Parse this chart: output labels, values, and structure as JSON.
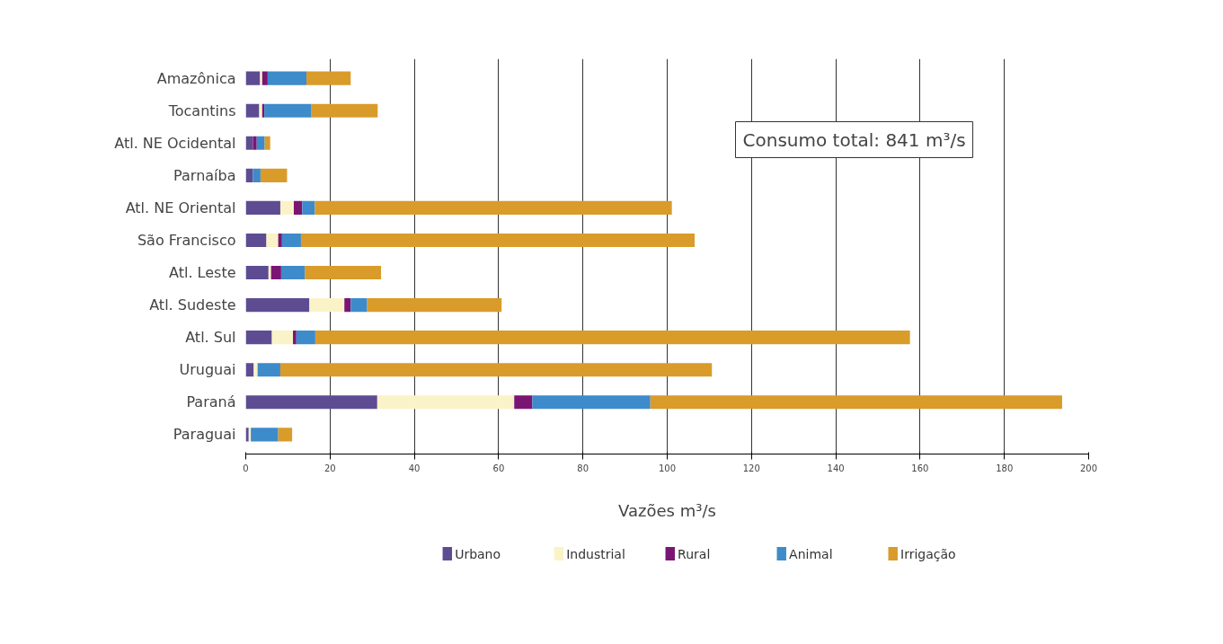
{
  "chart_data": {
    "type": "bar",
    "orientation": "horizontal",
    "stacked": true,
    "xlabel": "Vazões m³/s",
    "categories": [
      "Amazônica",
      "Tocantins",
      "Atl. NE Ocidental",
      "Parnaíba",
      "Atl. NE Oriental",
      "São Francisco",
      "Atl. Leste",
      "Atl. Sudeste",
      "Atl. Sul",
      "Uruguai",
      "Paraná",
      "Paraguai"
    ],
    "series": [
      {
        "name": "Urbano",
        "color": "#5d4c92",
        "values": [
          3.4,
          3.2,
          1.7,
          1.7,
          8.2,
          4.9,
          5.4,
          15.1,
          6.2,
          1.9,
          31.2,
          0.7
        ]
      },
      {
        "name": "Industrial",
        "color": "#faf3c8",
        "values": [
          0.5,
          0.7,
          0,
          0,
          3.2,
          2.8,
          0.6,
          8.3,
          5.0,
          0.9,
          32.5,
          0.5
        ]
      },
      {
        "name": "Rural",
        "color": "#7b1574",
        "values": [
          1.3,
          0.5,
          0.9,
          0,
          2.0,
          0.9,
          2.4,
          1.5,
          0.8,
          0,
          4.3,
          0
        ]
      },
      {
        "name": "Animal",
        "color": "#3d8bca",
        "values": [
          9.2,
          11.2,
          1.9,
          1.8,
          3.0,
          4.5,
          5.6,
          3.9,
          4.5,
          5.4,
          28.0,
          6.5
        ]
      },
      {
        "name": "Irrigação",
        "color": "#d99b2a",
        "values": [
          10.5,
          15.7,
          1.3,
          6.3,
          84.7,
          93.4,
          18.1,
          31.9,
          141.1,
          102.4,
          97.7,
          3.3
        ]
      }
    ],
    "xlim": [
      0,
      200
    ],
    "xticks": [
      0,
      20,
      40,
      60,
      80,
      100,
      120,
      140,
      160,
      180,
      200
    ],
    "grid": "x",
    "legend": "bottom",
    "annotations": [
      "Consumo total: 841 m³/s"
    ]
  }
}
